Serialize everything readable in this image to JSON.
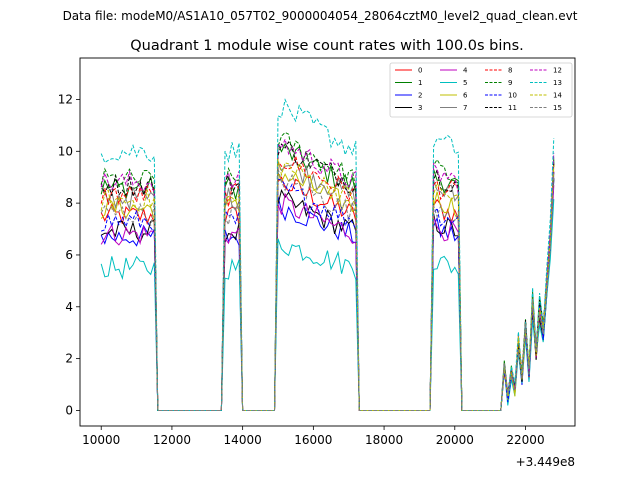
{
  "suptitle": "Data file: modeM0/AS1A10_057T02_9000004054_28064cztM0_level2_quad_clean.evt",
  "chart_data": {
    "type": "line",
    "title": "Quadrant 1 module wise count rates with 100.0s bins.",
    "xlabel": "",
    "ylabel": "",
    "x_offset_label": "+3.449e8",
    "xlim": [
      9400,
      23400
    ],
    "ylim": [
      -0.6,
      13.6
    ],
    "xticks": [
      10000,
      12000,
      14000,
      16000,
      18000,
      20000,
      22000
    ],
    "yticks": [
      0,
      2,
      4,
      6,
      8,
      10,
      12
    ],
    "legend": {
      "placement": "top-right",
      "columns": 4
    },
    "series": [
      {
        "name": "0",
        "color": "#ff0000",
        "dash": "solid",
        "base": 7.5
      },
      {
        "name": "1",
        "color": "#008000",
        "dash": "solid",
        "base": 8.6
      },
      {
        "name": "2",
        "color": "#0000ff",
        "dash": "solid",
        "base": 6.7
      },
      {
        "name": "3",
        "color": "#000000",
        "dash": "solid",
        "base": 6.9
      },
      {
        "name": "4",
        "color": "#bf00bf",
        "dash": "solid",
        "base": 6.8
      },
      {
        "name": "5",
        "color": "#00bfbf",
        "dash": "solid",
        "base": 5.5
      },
      {
        "name": "6",
        "color": "#bfbf00",
        "dash": "solid",
        "base": 7.8
      },
      {
        "name": "7",
        "color": "#7f7f7f",
        "dash": "solid",
        "base": 8.2
      },
      {
        "name": "8",
        "color": "#ff0000",
        "dash": "dashed",
        "base": 8.3
      },
      {
        "name": "9",
        "color": "#008000",
        "dash": "dashed",
        "base": 8.9
      },
      {
        "name": "10",
        "color": "#0000ff",
        "dash": "dashed",
        "base": 7.3
      },
      {
        "name": "11",
        "color": "#000000",
        "dash": "dashed",
        "base": 8.7
      },
      {
        "name": "12",
        "color": "#bf00bf",
        "dash": "dashed",
        "base": 8.8
      },
      {
        "name": "13",
        "color": "#00bfbf",
        "dash": "dashed",
        "base": 10.0
      },
      {
        "name": "14",
        "color": "#bfbf00",
        "dash": "dashed",
        "base": 8.1
      },
      {
        "name": "15",
        "color": "#7f7f7f",
        "dash": "dashed",
        "base": 7.6
      }
    ],
    "segments": [
      {
        "start": 10000,
        "end": 11500,
        "level": 1.0,
        "trend": 0.0
      },
      {
        "start": 11600,
        "end": 13400,
        "level": 0.0,
        "trend": 0.0
      },
      {
        "start": 13500,
        "end": 13900,
        "level": 1.0,
        "trend": 0.0
      },
      {
        "start": 14000,
        "end": 14900,
        "level": 0.0,
        "trend": 0.0
      },
      {
        "start": 15000,
        "end": 17200,
        "level": 1.18,
        "trend": -0.18
      },
      {
        "start": 17300,
        "end": 19300,
        "level": 0.0,
        "trend": 0.0
      },
      {
        "start": 19400,
        "end": 20100,
        "level": 1.05,
        "trend": -0.05
      },
      {
        "start": 20200,
        "end": 21300,
        "level": 0.0,
        "trend": 0.0
      },
      {
        "start": 21400,
        "end": 22800,
        "level": "flare",
        "trend": 0.0
      }
    ],
    "flare": [
      {
        "x": 21400,
        "y": 1.3
      },
      {
        "x": 21500,
        "y": 0.4
      },
      {
        "x": 21600,
        "y": 1.2
      },
      {
        "x": 21700,
        "y": 0.6
      },
      {
        "x": 21800,
        "y": 2.1
      },
      {
        "x": 21900,
        "y": 1.0
      },
      {
        "x": 22000,
        "y": 2.6
      },
      {
        "x": 22100,
        "y": 1.2
      },
      {
        "x": 22200,
        "y": 3.4
      },
      {
        "x": 22300,
        "y": 1.8
      },
      {
        "x": 22400,
        "y": 3.2
      },
      {
        "x": 22500,
        "y": 2.4
      },
      {
        "x": 22600,
        "y": 3.8
      },
      {
        "x": 22700,
        "y": 5.2
      },
      {
        "x": 22800,
        "y": 7.6
      }
    ]
  }
}
